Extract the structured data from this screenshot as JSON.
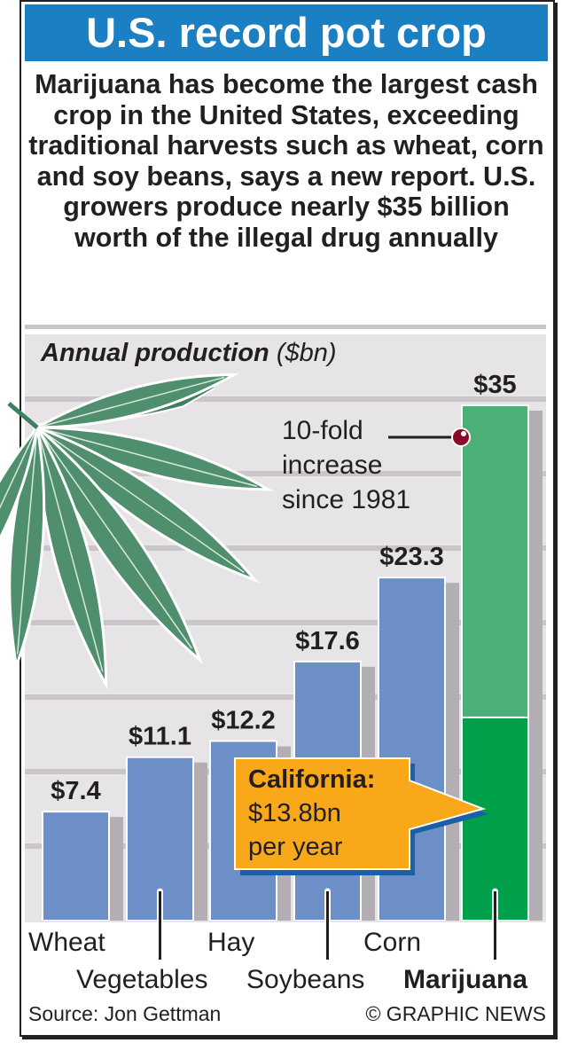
{
  "title": "U.S. record pot crop",
  "intro": "Marijuana has become the largest cash crop in the United States, exceeding traditional harvests such as wheat, corn and soy beans, says a new report. U.S. growers produce nearly $35 billion worth of the illegal drug annually",
  "source": "Source: Jon Gettman",
  "credit": "© GRAPHIC NEWS",
  "colors": {
    "title_bar": "#1b7fc3",
    "bar": "#6b8fc6",
    "marijuana": "#4caf78",
    "california": "#00a04b",
    "callout": "#f9a81a",
    "panel": "#e7e4e7"
  },
  "chart_data": {
    "type": "bar",
    "title": "Annual production",
    "unit": "($bn)",
    "categories": [
      "Wheat",
      "Vegetables",
      "Hay",
      "Soybeans",
      "Corn",
      "Marijuana"
    ],
    "values": [
      7.4,
      11.1,
      12.2,
      17.6,
      23.3,
      35
    ],
    "value_labels": [
      "$7.4",
      "$11.1",
      "$12.2",
      "$17.6",
      "$23.3",
      "$35"
    ],
    "ylim": [
      0,
      35
    ],
    "grid": true,
    "annotations": {
      "increase": [
        "10-fold",
        "increase",
        "since 1981"
      ],
      "california": {
        "label": "California:",
        "value_text": "$13.8bn",
        "period": "per year",
        "value": 13.8
      }
    }
  }
}
